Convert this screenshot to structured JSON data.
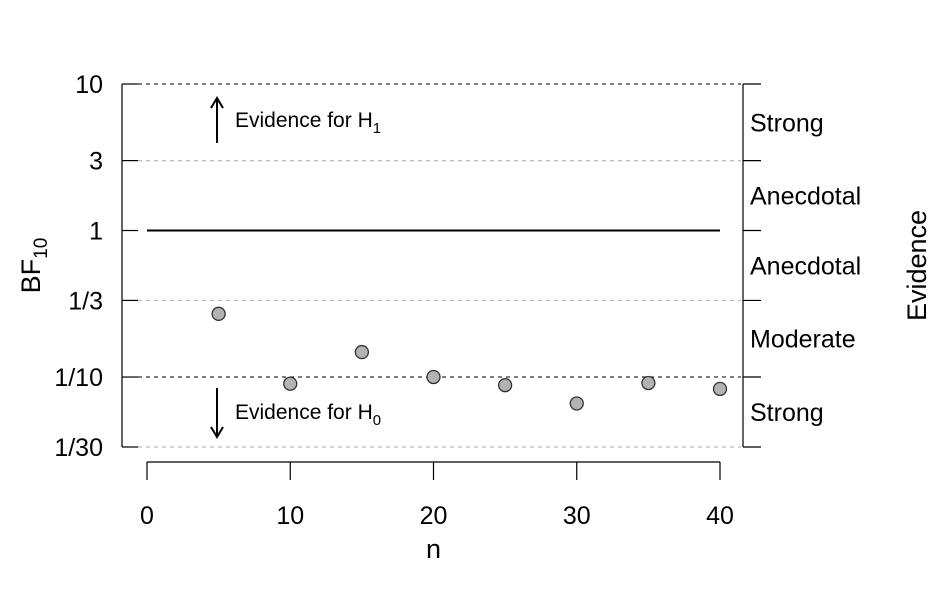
{
  "chart_data": {
    "type": "scatter",
    "title": "",
    "xlabel": "n",
    "ylabel": "BF",
    "ylabel_subscript": "10",
    "y_scale": "log",
    "xlim": [
      0,
      40
    ],
    "ylim": [
      0.0333,
      10
    ],
    "x_ticks": [
      0,
      10,
      20,
      30,
      40
    ],
    "x_tick_labels": [
      "0",
      "10",
      "20",
      "30",
      "40"
    ],
    "y_ticks": [
      {
        "value": 10,
        "label": "10"
      },
      {
        "value": 3,
        "label": "3"
      },
      {
        "value": 1,
        "label": "1"
      },
      {
        "value": 0.3333,
        "label": "1/3"
      },
      {
        "value": 0.1,
        "label": "1/10"
      },
      {
        "value": 0.0333,
        "label": "1/30"
      }
    ],
    "reference_line": 1,
    "dashed_lines": [
      {
        "value": 10,
        "color": "#333333"
      },
      {
        "value": 3,
        "color": "#bbbbbb"
      },
      {
        "value": 0.3333,
        "color": "#bbbbbb"
      },
      {
        "value": 0.1,
        "color": "#333333"
      },
      {
        "value": 0.0333,
        "color": "#bbbbbb"
      }
    ],
    "points": [
      {
        "x": 5,
        "y": 0.27
      },
      {
        "x": 10,
        "y": 0.09
      },
      {
        "x": 15,
        "y": 0.148
      },
      {
        "x": 20,
        "y": 0.1
      },
      {
        "x": 25,
        "y": 0.088
      },
      {
        "x": 30,
        "y": 0.066
      },
      {
        "x": 35,
        "y": 0.091
      },
      {
        "x": 40,
        "y": 0.083
      }
    ],
    "point_color": "#b3b3b3",
    "right_axis_title": "Evidence",
    "evidence_bands": [
      {
        "label": "Strong",
        "low": 3,
        "high": 10
      },
      {
        "label": "Anecdotal",
        "low": 1,
        "high": 3
      },
      {
        "label": "Anecdotal",
        "low": 0.3333,
        "high": 1
      },
      {
        "label": "Moderate",
        "low": 0.1,
        "high": 0.3333
      },
      {
        "label": "Strong",
        "low": 0.0333,
        "high": 0.1
      }
    ],
    "annotations": {
      "h1": {
        "text": "Evidence for H",
        "subscript": "1",
        "direction": "up"
      },
      "h0": {
        "text": "Evidence for H",
        "subscript": "0",
        "direction": "down"
      }
    }
  }
}
